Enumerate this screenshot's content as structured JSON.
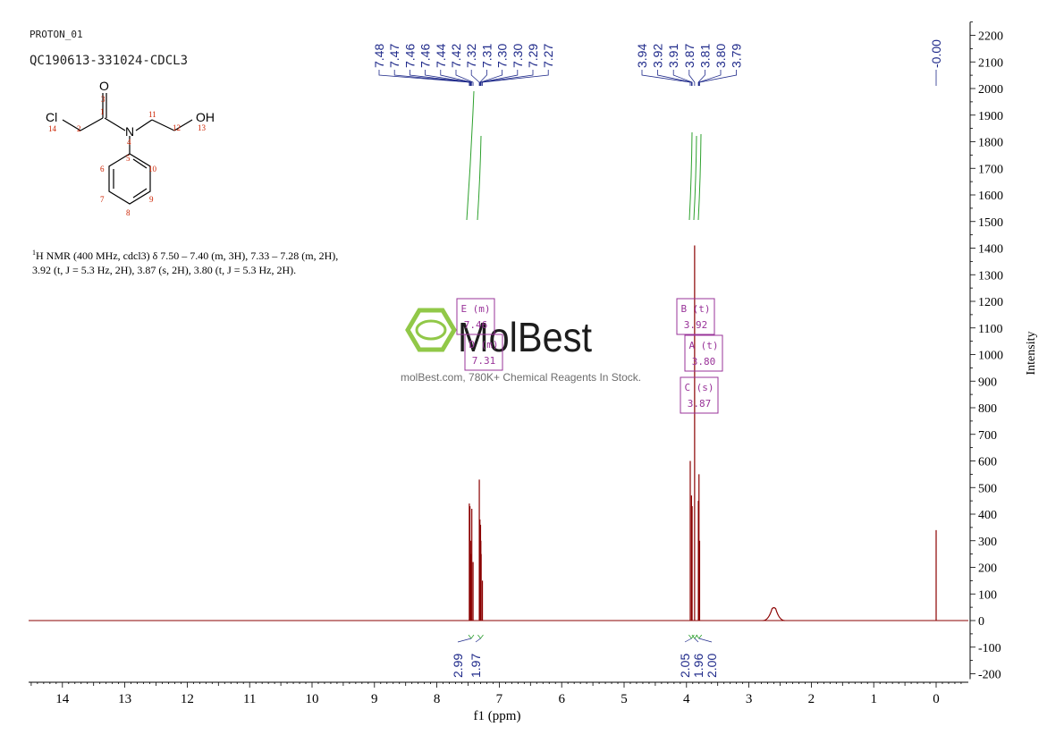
{
  "header": {
    "line1": "PROTON_01",
    "line2": "QC190613-331024-CDCL3"
  },
  "structure": {
    "labels": {
      "o": "O",
      "cl": "Cl",
      "n": "N",
      "oh": "OH"
    },
    "numbers": [
      "1",
      "2",
      "3",
      "4",
      "5",
      "6",
      "7",
      "8",
      "9",
      "10",
      "11",
      "12",
      "13",
      "14"
    ]
  },
  "description": {
    "line1": "H NMR (400 MHz, cdcl3) δ 7.50 – 7.40 (m, 3H), 7.33 – 7.28 (m, 2H),",
    "line2": "3.92 (t, J = 5.3 Hz, 2H), 3.87 (s, 2H), 3.80 (t, J = 5.3 Hz, 2H).",
    "sup": "1"
  },
  "watermark": {
    "brand": "MolBest",
    "tagline": "molBest.com, 780K+ Chemical Reagents In Stock."
  },
  "peak_labels": [
    {
      "text": "7.48",
      "ppm": 7.48
    },
    {
      "text": "7.47",
      "ppm": 7.47
    },
    {
      "text": "7.46",
      "ppm": 7.46
    },
    {
      "text": "7.46",
      "ppm": 7.455
    },
    {
      "text": "7.44",
      "ppm": 7.44
    },
    {
      "text": "7.42",
      "ppm": 7.42
    },
    {
      "text": "7.32",
      "ppm": 7.32
    },
    {
      "text": "7.31",
      "ppm": 7.31
    },
    {
      "text": "7.30",
      "ppm": 7.3
    },
    {
      "text": "7.30",
      "ppm": 7.295
    },
    {
      "text": "7.29",
      "ppm": 7.29
    },
    {
      "text": "7.27",
      "ppm": 7.27
    },
    {
      "text": "3.94",
      "ppm": 3.94
    },
    {
      "text": "3.92",
      "ppm": 3.92
    },
    {
      "text": "3.91",
      "ppm": 3.91
    },
    {
      "text": "3.87",
      "ppm": 3.87
    },
    {
      "text": "3.81",
      "ppm": 3.81
    },
    {
      "text": "3.80",
      "ppm": 3.8
    },
    {
      "text": "3.79",
      "ppm": 3.79
    },
    {
      "text": "-0.00",
      "ppm": 0.0
    }
  ],
  "multiplets": [
    {
      "letter": "E",
      "mult": "(m)",
      "shift": "7.46"
    },
    {
      "letter": "D",
      "mult": "(m)",
      "shift": "7.31"
    },
    {
      "letter": "B",
      "mult": "(t)",
      "shift": "3.92"
    },
    {
      "letter": "A",
      "mult": "(t)",
      "shift": "3.80"
    },
    {
      "letter": "C",
      "mult": "(s)",
      "shift": "3.87"
    }
  ],
  "integrals": [
    {
      "text": "2.99",
      "ppm": 7.45
    },
    {
      "text": "1.97",
      "ppm": 7.3
    },
    {
      "text": "2.05",
      "ppm": 3.92
    },
    {
      "text": "1.96",
      "ppm": 3.87
    },
    {
      "text": "2.00",
      "ppm": 3.8
    }
  ],
  "colors": {
    "spectrum": "#8b0000",
    "peak_label": "#1f2a8a",
    "integral": "#2ca02c",
    "multiplet_box": "#993399",
    "structure_number": "#cc2200",
    "watermark_green": "#8cc63f",
    "axis": "#000000"
  },
  "chart_data": {
    "type": "line",
    "title": "",
    "xlabel": "f1 (ppm)",
    "ylabel": "Intensity",
    "xlim": [
      14.6,
      -0.5
    ],
    "x_reversed": true,
    "ylim": [
      -200,
      2250
    ],
    "x_ticks": [
      "14",
      "13",
      "12",
      "11",
      "10",
      "9",
      "8",
      "7",
      "6",
      "5",
      "4",
      "3",
      "2",
      "1",
      "0"
    ],
    "y_ticks": [
      "2200",
      "2100",
      "2000",
      "1900",
      "1800",
      "1700",
      "1600",
      "1500",
      "1400",
      "1300",
      "1200",
      "1100",
      "1000",
      "900",
      "800",
      "700",
      "600",
      "500",
      "400",
      "300",
      "200",
      "100",
      "0",
      "-100",
      "-200"
    ],
    "grid": false,
    "series": [
      {
        "peaks": [
          {
            "ppm": 7.48,
            "height": 440
          },
          {
            "ppm": 7.47,
            "height": 430
          },
          {
            "ppm": 7.46,
            "height": 300
          },
          {
            "ppm": 7.455,
            "height": 250
          },
          {
            "ppm": 7.44,
            "height": 420
          },
          {
            "ppm": 7.42,
            "height": 220
          },
          {
            "ppm": 7.32,
            "height": 530
          },
          {
            "ppm": 7.31,
            "height": 380
          },
          {
            "ppm": 7.3,
            "height": 360
          },
          {
            "ppm": 7.295,
            "height": 300
          },
          {
            "ppm": 7.29,
            "height": 250
          },
          {
            "ppm": 7.27,
            "height": 150
          },
          {
            "ppm": 3.94,
            "height": 600
          },
          {
            "ppm": 3.92,
            "height": 470
          },
          {
            "ppm": 3.91,
            "height": 430
          },
          {
            "ppm": 3.87,
            "height": 1410
          },
          {
            "ppm": 3.81,
            "height": 450
          },
          {
            "ppm": 3.8,
            "height": 550
          },
          {
            "ppm": 3.79,
            "height": 300
          },
          {
            "ppm": 2.6,
            "height": 45,
            "broad": true
          },
          {
            "ppm": 0.0,
            "height": 340
          }
        ]
      }
    ]
  }
}
